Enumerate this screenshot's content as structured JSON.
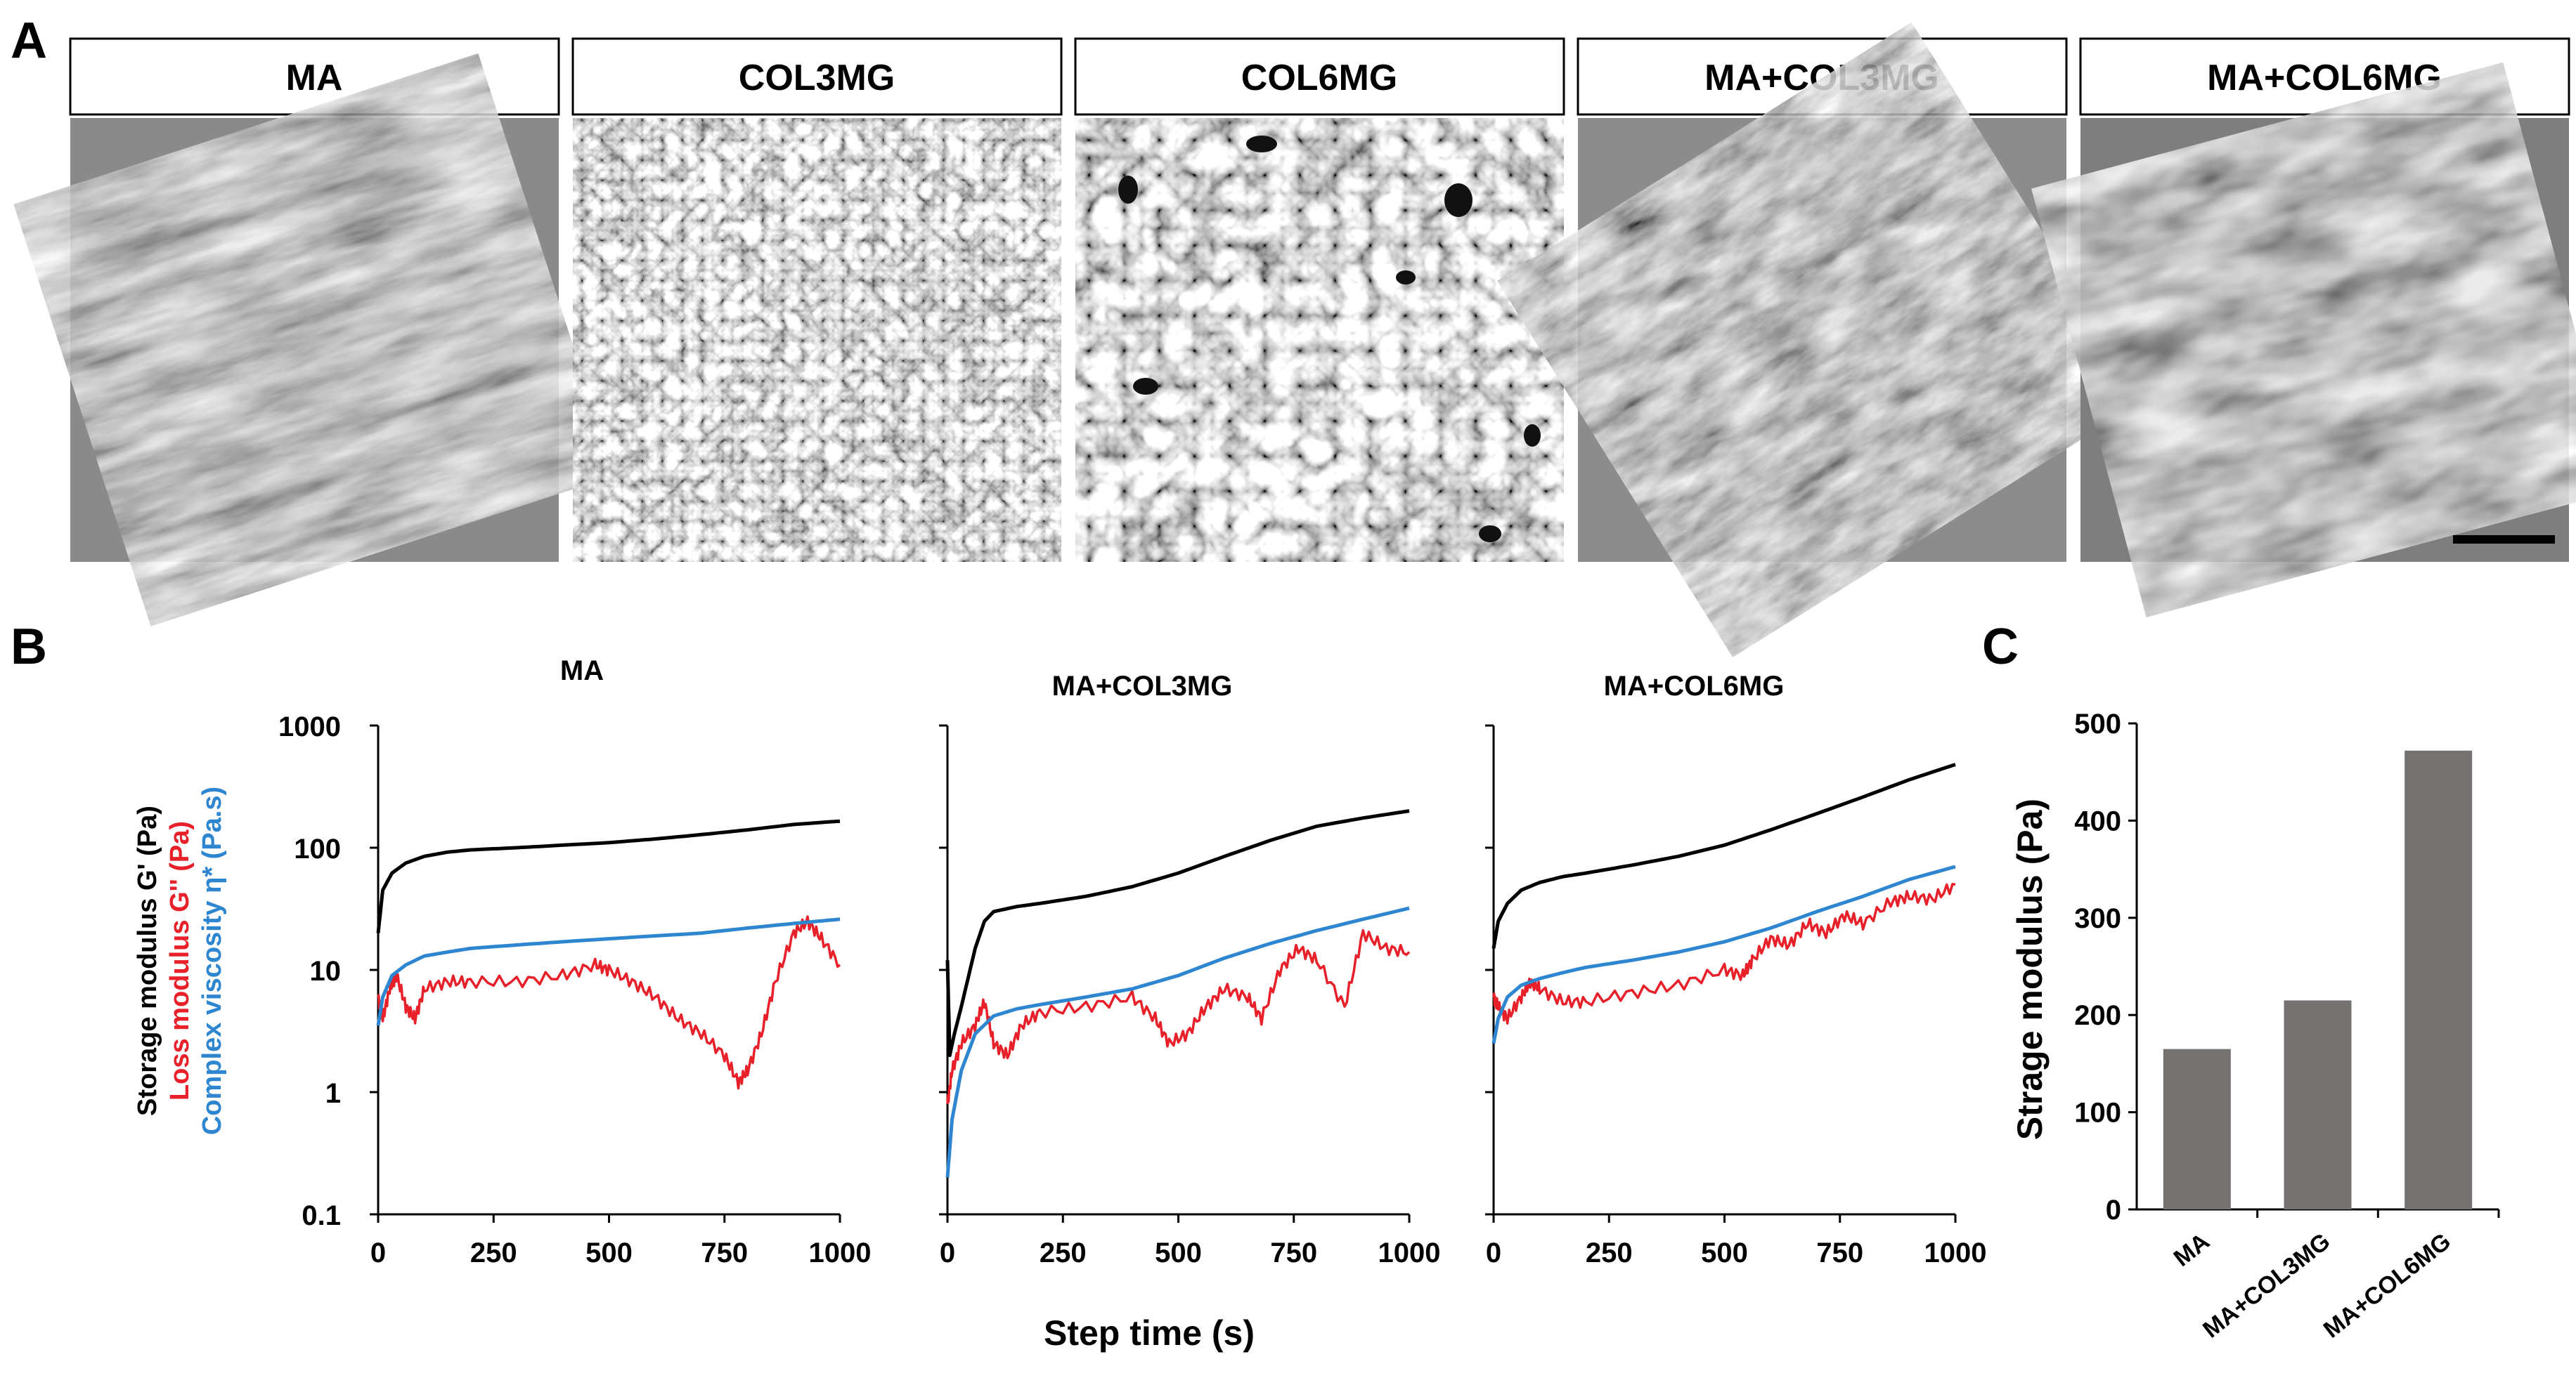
{
  "panel_a": {
    "letter": "A",
    "images": [
      {
        "label": "MA"
      },
      {
        "label": "COL3MG"
      },
      {
        "label": "COL6MG"
      },
      {
        "label": "MA+COL3MG"
      },
      {
        "label": "MA+COL6MG"
      }
    ]
  },
  "panel_b": {
    "letter": "B",
    "xlabel": "Step time (s)",
    "ylabel_parts": [
      {
        "text": "Storage modulus G' (Pa)",
        "color": "#000000"
      },
      {
        "text": "Loss modulus G'' (Pa)",
        "color": "#e8202a"
      },
      {
        "text": "Complex viscosity η* (Pa.s)",
        "color": "#2e86d0"
      }
    ],
    "y_ticks": [
      "1000",
      "100",
      "10",
      "1",
      "0.1"
    ],
    "x_ticks": [
      "0",
      "250",
      "500",
      "750",
      "1000"
    ],
    "series_colors": {
      "storage": "#000000",
      "loss": "#e8202a",
      "viscosity": "#2e86d0"
    }
  },
  "panel_c": {
    "letter": "C"
  },
  "chart_data": [
    {
      "type": "line",
      "title": "MA",
      "xlabel": "Step time (s)",
      "ylabel": "Storage modulus G' (Pa) / Loss modulus G'' (Pa) / Complex viscosity η* (Pa.s)",
      "yscale": "log",
      "xlim": [
        0,
        1000
      ],
      "ylim": [
        0.1,
        1000
      ],
      "series": [
        {
          "name": "Storage modulus G'",
          "x": [
            0,
            10,
            30,
            60,
            100,
            150,
            200,
            300,
            400,
            500,
            600,
            700,
            800,
            900,
            1000
          ],
          "values": [
            20,
            45,
            62,
            75,
            85,
            92,
            96,
            100,
            105,
            110,
            118,
            128,
            140,
            155,
            165
          ]
        },
        {
          "name": "Loss modulus G''",
          "x": [
            0,
            10,
            25,
            40,
            60,
            80,
            100,
            150,
            200,
            300,
            400,
            470,
            500,
            550,
            600,
            650,
            700,
            750,
            780,
            800,
            830,
            860,
            900,
            930,
            960,
            1000
          ],
          "values": [
            6,
            4,
            7,
            9,
            5,
            4,
            7,
            8,
            8,
            8,
            9,
            11,
            10,
            8,
            6,
            4,
            3,
            2,
            1.2,
            1.5,
            3,
            8,
            20,
            25,
            18,
            11
          ]
        },
        {
          "name": "Complex viscosity η*",
          "x": [
            0,
            10,
            30,
            60,
            100,
            150,
            200,
            300,
            400,
            500,
            600,
            700,
            800,
            900,
            1000
          ],
          "values": [
            3.5,
            6,
            9,
            11,
            13,
            14,
            15,
            16,
            17,
            18,
            19,
            20,
            22,
            24,
            26
          ]
        }
      ]
    },
    {
      "type": "line",
      "title": "MA+COL3MG",
      "xlabel": "Step time (s)",
      "yscale": "log",
      "xlim": [
        0,
        1000
      ],
      "ylim": [
        0.1,
        1000
      ],
      "series": [
        {
          "name": "Storage modulus G'",
          "x": [
            0,
            5,
            15,
            30,
            60,
            80,
            100,
            150,
            200,
            300,
            400,
            500,
            600,
            700,
            800,
            900,
            1000
          ],
          "values": [
            12,
            2,
            3,
            5,
            15,
            25,
            30,
            33,
            35,
            40,
            48,
            62,
            85,
            115,
            150,
            175,
            200
          ]
        },
        {
          "name": "Loss modulus G''",
          "x": [
            0,
            10,
            30,
            60,
            80,
            100,
            130,
            160,
            200,
            300,
            400,
            450,
            480,
            520,
            560,
            600,
            650,
            680,
            720,
            760,
            800,
            860,
            900,
            950,
            1000
          ],
          "values": [
            0.8,
            1.5,
            2.5,
            3.5,
            5.5,
            2.5,
            2.0,
            3.5,
            4.5,
            5,
            6,
            4,
            2.5,
            3,
            5,
            7,
            6,
            4,
            10,
            15,
            12,
            5,
            20,
            15,
            14
          ]
        },
        {
          "name": "Complex viscosity η*",
          "x": [
            0,
            10,
            30,
            60,
            100,
            150,
            200,
            300,
            400,
            500,
            600,
            700,
            800,
            900,
            1000
          ],
          "values": [
            0.2,
            0.6,
            1.5,
            3.0,
            4.2,
            4.8,
            5.2,
            6.0,
            7.0,
            9.0,
            12.5,
            16.5,
            21,
            26,
            32
          ]
        }
      ]
    },
    {
      "type": "line",
      "title": "MA+COL6MG",
      "xlabel": "Step time (s)",
      "yscale": "log",
      "xlim": [
        0,
        1000
      ],
      "ylim": [
        0.1,
        1000
      ],
      "series": [
        {
          "name": "Storage modulus G'",
          "x": [
            0,
            10,
            30,
            60,
            100,
            150,
            200,
            300,
            400,
            500,
            600,
            700,
            800,
            900,
            1000
          ],
          "values": [
            15,
            25,
            35,
            45,
            52,
            58,
            62,
            72,
            85,
            105,
            140,
            190,
            260,
            360,
            480
          ]
        },
        {
          "name": "Loss modulus G''",
          "x": [
            0,
            10,
            30,
            60,
            80,
            100,
            150,
            200,
            300,
            400,
            500,
            540,
            560,
            600,
            640,
            680,
            720,
            760,
            800,
            860,
            900,
            950,
            1000
          ],
          "values": [
            6,
            5,
            4,
            6,
            8,
            7,
            5.5,
            5.5,
            6.5,
            7.5,
            10,
            9,
            12,
            18,
            16,
            24,
            20,
            28,
            24,
            36,
            40,
            38,
            50
          ]
        },
        {
          "name": "Complex viscosity η*",
          "x": [
            0,
            10,
            30,
            60,
            100,
            150,
            200,
            300,
            400,
            500,
            600,
            700,
            800,
            900,
            1000
          ],
          "values": [
            2.5,
            4,
            6,
            7.5,
            8.5,
            9.5,
            10.5,
            12,
            14,
            17,
            22,
            30,
            40,
            55,
            70
          ]
        }
      ]
    },
    {
      "type": "bar",
      "title": "",
      "xlabel": "",
      "ylabel": "Strage modulus (Pa)",
      "ylim": [
        0,
        500
      ],
      "y_ticks": [
        "0",
        "100",
        "200",
        "300",
        "400",
        "500"
      ],
      "categories": [
        "MA",
        "MA+COL3MG",
        "MA+COL6MG"
      ],
      "values": [
        165,
        215,
        472
      ],
      "color": "#767171"
    }
  ]
}
